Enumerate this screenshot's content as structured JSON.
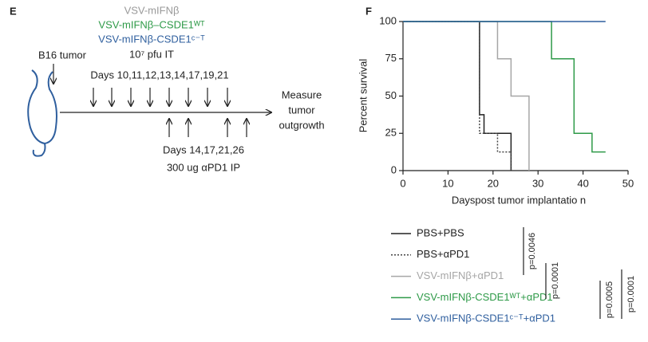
{
  "diagram": {
    "panel": "E",
    "treatments": [
      "VSV-mIFNβ",
      "VSV-mIFNβ–CSDE1ᵂᵀ",
      "VSV-mIFNβ-CSDE1ᶜ⁻ᵀ"
    ],
    "dose": "10⁷ pfu IT",
    "tumor": "B16 tumor",
    "virus_days": "Days 10,11,12,13,14,17,19,21",
    "antibody_days": "Days 14,17,21,26",
    "antibody_dose": "300 ug αPD1 IP",
    "outcome": [
      "Measure",
      "tumor",
      "outgrowth"
    ]
  },
  "chart_data": {
    "type": "step",
    "panel": "F",
    "ylabel": "Percent survival",
    "xlabel": "Dayspost tumor implantatio n",
    "xlim": [
      0,
      50
    ],
    "xticks": [
      0,
      10,
      20,
      30,
      40,
      50
    ],
    "ylim": [
      0,
      100
    ],
    "yticks": [
      0,
      25,
      50,
      75,
      100
    ],
    "series": [
      {
        "name": "PBS+PBS",
        "color": "#222222",
        "dash": "solid",
        "x": [
          0,
          17,
          18,
          24
        ],
        "values": [
          100,
          37.5,
          25,
          0
        ]
      },
      {
        "name": "PBS+αPD1",
        "color": "#444444",
        "dash": "dotted",
        "x": [
          0,
          17,
          21,
          24
        ],
        "values": [
          100,
          25,
          12.5,
          0
        ]
      },
      {
        "name": "VSV-mIFNβ+αPD1",
        "color": "#a6a6a6",
        "dash": "solid",
        "x": [
          0,
          21,
          24,
          28
        ],
        "values": [
          100,
          75,
          50,
          0
        ]
      },
      {
        "name": "VSV-mIFNβ-CSDE1ᵂᵀ+αPD1",
        "color": "#2e9a48",
        "dash": "solid",
        "x": [
          0,
          33,
          38,
          42,
          45
        ],
        "values": [
          100,
          75,
          25,
          12.5,
          12.5
        ]
      },
      {
        "name": "VSV-mIFNβ-CSDE1ᶜ⁻ᵀ+αPD1",
        "color": "#2f5f9e",
        "dash": "solid",
        "x": [
          0,
          45
        ],
        "values": [
          100,
          100
        ]
      }
    ],
    "p_values": [
      "p=0.0046",
      "p=0.0001",
      "p=0.0005",
      "p=0.0001"
    ]
  }
}
